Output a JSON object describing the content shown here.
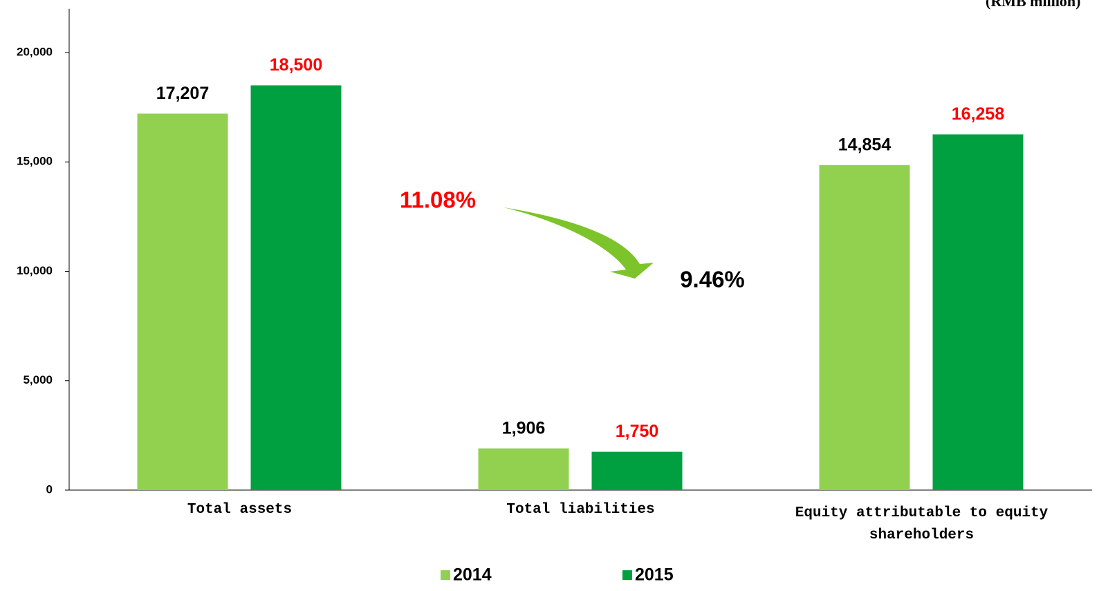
{
  "chart_data": {
    "type": "bar",
    "unit_label": "(RMB million)",
    "categories": [
      "Total assets",
      "Total liabilities",
      "Equity attributable to equity shareholders"
    ],
    "series": [
      {
        "name": "2014",
        "color": "#92d050",
        "label_color": "#000000",
        "values": [
          17207,
          1906,
          14854
        ],
        "value_labels": [
          "17,207",
          "1,906",
          "14,854"
        ]
      },
      {
        "name": "2015",
        "color": "#00a040",
        "label_color": "#ff0000",
        "values": [
          18500,
          1750,
          16258
        ],
        "value_labels": [
          "18,500",
          "1,750",
          "16,258"
        ]
      }
    ],
    "ylim": [
      0,
      22000
    ],
    "yticks": [
      {
        "value": 0,
        "label": "0"
      },
      {
        "value": 5000,
        "label": "5,000"
      },
      {
        "value": 10000,
        "label": "10,000"
      },
      {
        "value": 15000,
        "label": "15,000"
      },
      {
        "value": 20000,
        "label": "20,000"
      }
    ],
    "annotations": [
      {
        "text": "11.08%",
        "color": "#ff0000"
      },
      {
        "text": "9.46%",
        "color": "#000000"
      }
    ],
    "grid": false
  }
}
